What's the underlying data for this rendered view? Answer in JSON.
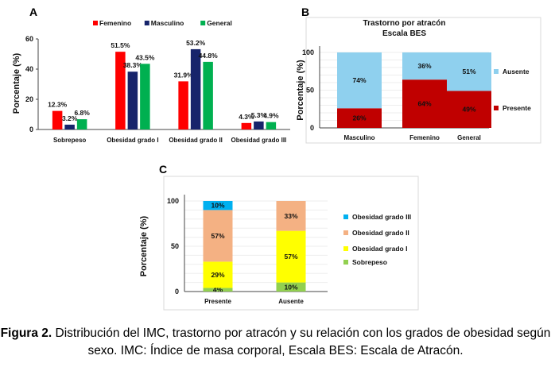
{
  "caption": {
    "label": "Figura 2.",
    "text": " Distribución del IMC, trastorno por atracón y su relación con los grados de obesidad según sexo. IMC: Índice de masa corporal, Escala BES: Escala de Atracón."
  },
  "chart_data": [
    {
      "panel": "A",
      "type": "bar",
      "title": "",
      "ylabel": "Porcentaje (%)",
      "ylim": [
        0,
        60
      ],
      "yticks": [
        0,
        20,
        40,
        60
      ],
      "categories": [
        "Sobrepeso",
        "Obesidad grado I",
        "Obesidad grado II",
        "Obesidad grado III"
      ],
      "legend_position": "top",
      "series": [
        {
          "name": "Femenino",
          "color": "#ff0000",
          "values": [
            12.3,
            51.5,
            31.9,
            4.3
          ],
          "labels": [
            "12.3%",
            "51.5%",
            "31.9%",
            "4.3%"
          ]
        },
        {
          "name": "Masculino",
          "color": "#17246b",
          "values": [
            3.2,
            38.3,
            53.2,
            5.3
          ],
          "labels": [
            "3.2%",
            "38.3%",
            "53.2%",
            "5.3%"
          ]
        },
        {
          "name": "General",
          "color": "#00b050",
          "values": [
            6.8,
            43.5,
            44.8,
            4.9
          ],
          "labels": [
            "6.8%",
            "43.5%",
            "44.8%",
            "4.9%"
          ]
        }
      ]
    },
    {
      "panel": "B",
      "type": "bar",
      "stacked": true,
      "title": "Trastorno por atracón",
      "subtitle": "Escala BES",
      "ylabel": "Porcentaje (%)",
      "ylim": [
        0,
        100
      ],
      "yticks": [
        0,
        50,
        100
      ],
      "grid": true,
      "categories": [
        "Masculino",
        "Femenino",
        "General"
      ],
      "legend_position": "right",
      "series": [
        {
          "name": "Presente",
          "color": "#c00000",
          "values": [
            26,
            64,
            49
          ],
          "labels": [
            "26%",
            "64%",
            "49%"
          ]
        },
        {
          "name": "Ausente",
          "color": "#8fd0ee",
          "values": [
            74,
            36,
            51
          ],
          "labels": [
            "74%",
            "36%",
            "51%"
          ]
        }
      ]
    },
    {
      "panel": "C",
      "type": "bar",
      "stacked": true,
      "title": "",
      "ylabel": "Porcentaje (%)",
      "ylim": [
        0,
        100
      ],
      "yticks": [
        0,
        50,
        100
      ],
      "grid": true,
      "categories": [
        "Presente",
        "Ausente"
      ],
      "legend_position": "right",
      "series": [
        {
          "name": "Sobrepeso",
          "color": "#92d050",
          "values": [
            4,
            10
          ],
          "labels": [
            "4%",
            "10%"
          ]
        },
        {
          "name": "Obesidad grado I",
          "color": "#ffff00",
          "values": [
            29,
            57
          ],
          "labels": [
            "29%",
            "57%"
          ]
        },
        {
          "name": "Obesidad grado II",
          "color": "#f4b183",
          "values": [
            57,
            33
          ],
          "labels": [
            "57%",
            "33%"
          ]
        },
        {
          "name": "Obesidad grado III",
          "color": "#00b0f0",
          "values": [
            10,
            0
          ],
          "labels": [
            "10%",
            ""
          ]
        }
      ]
    }
  ]
}
